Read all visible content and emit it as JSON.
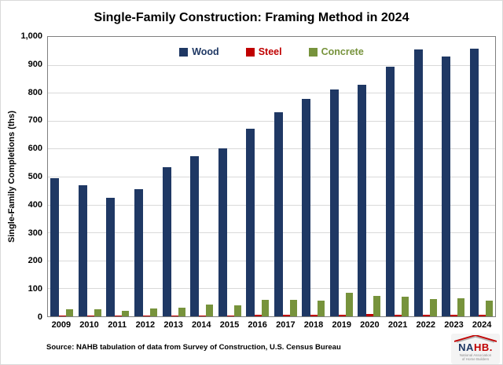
{
  "chart_data": {
    "type": "bar",
    "title": "Single-Family Construction: Framing Method in 2024",
    "xlabel": "",
    "ylabel": "Single-Family Completions (ths)",
    "ylim": [
      0,
      1000
    ],
    "ytick_interval": 100,
    "yticklabels": [
      "1,000",
      "900",
      "800",
      "700",
      "600",
      "500",
      "400",
      "300",
      "200",
      "100",
      "0"
    ],
    "grid": true,
    "legend_position": "top-center",
    "categories": [
      "2009",
      "2010",
      "2011",
      "2012",
      "2013",
      "2014",
      "2015",
      "2016",
      "2017",
      "2018",
      "2019",
      "2020",
      "2021",
      "2022",
      "2023",
      "2024"
    ],
    "series": [
      {
        "name": "Wood",
        "color": "#1F3864",
        "values": [
          495,
          470,
          425,
          455,
          535,
          573,
          602,
          672,
          730,
          778,
          813,
          830,
          893,
          955,
          929,
          958
        ]
      },
      {
        "name": "Steel",
        "color": "#C00000",
        "values": [
          4,
          4,
          3,
          3,
          4,
          4,
          4,
          5,
          5,
          5,
          5,
          8,
          6,
          5,
          5,
          6
        ]
      },
      {
        "name": "Concrete",
        "color": "#77933C",
        "values": [
          25,
          24,
          20,
          28,
          32,
          43,
          40,
          60,
          60,
          57,
          85,
          73,
          70,
          62,
          64,
          55
        ]
      }
    ]
  },
  "source": "Source: NAHB tabulation of data from Survey of Construction, U.S. Census Bureau",
  "logo": {
    "na": "NA",
    "hb": "HB.",
    "sub_line1": "National Association",
    "sub_line2": "of Home Builders"
  },
  "colors": {
    "grid": "#D9D9D9",
    "plot_border": "#7F7F7F",
    "text": "#000000"
  }
}
